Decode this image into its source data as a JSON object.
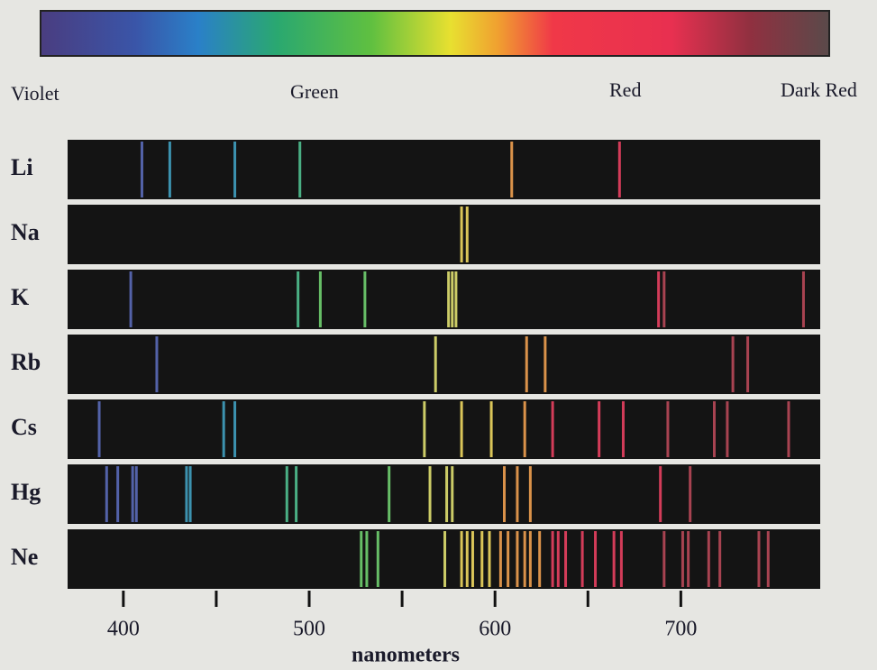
{
  "chart_data": {
    "type": "emission-spectra",
    "spectrum_labels": [
      "Violet",
      "Green",
      "Red",
      "Dark Red"
    ],
    "xlabel": "nanometers",
    "xlim": [
      370,
      775
    ],
    "xticks": [
      400,
      500,
      600,
      700
    ],
    "minor_xticks": [
      450,
      550,
      650
    ],
    "series": [
      {
        "name": "Li",
        "values": [
          410,
          425,
          460,
          495,
          609,
          667
        ]
      },
      {
        "name": "Na",
        "values": [
          582,
          585
        ]
      },
      {
        "name": "K",
        "values": [
          404,
          494,
          506,
          530,
          575,
          577,
          579,
          688,
          691,
          766
        ]
      },
      {
        "name": "Rb",
        "values": [
          418,
          568,
          617,
          627,
          728,
          736
        ]
      },
      {
        "name": "Cs",
        "values": [
          387,
          454,
          460,
          562,
          582,
          598,
          616,
          631,
          656,
          669,
          693,
          718,
          725,
          758
        ]
      },
      {
        "name": "Hg",
        "values": [
          391,
          397,
          405,
          407,
          434,
          436,
          488,
          493,
          543,
          565,
          574,
          577,
          605,
          612,
          619,
          689,
          705
        ]
      },
      {
        "name": "Ne",
        "values": [
          528,
          531,
          537,
          573,
          582,
          585,
          588,
          593,
          597,
          603,
          607,
          612,
          616,
          619,
          624,
          631,
          634,
          638,
          647,
          654,
          664,
          668,
          691,
          701,
          704,
          715,
          721,
          742,
          747
        ]
      }
    ]
  }
}
